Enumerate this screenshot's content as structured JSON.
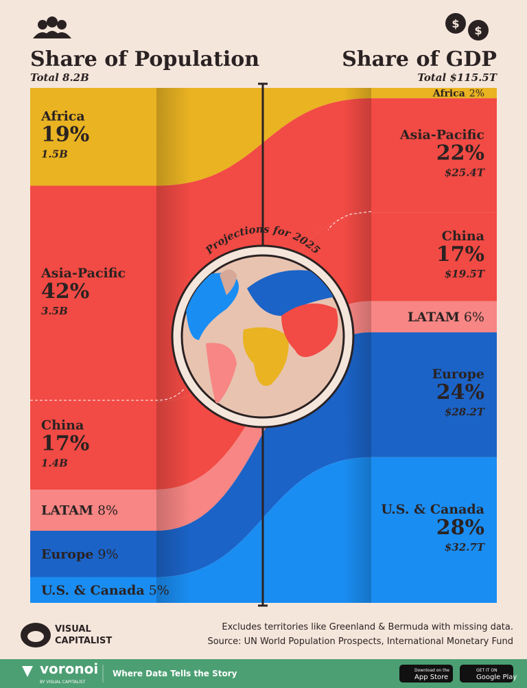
{
  "chart_data": {
    "type": "alluvial",
    "annotation": "Projections for 2025",
    "categories": [
      "Africa",
      "Asia-Pacific",
      "China",
      "LATAM",
      "Europe",
      "U.S. & Canada"
    ],
    "colors": [
      "#e9b322",
      "#f24a44",
      "#f24a44",
      "#f78684",
      "#1b63c7",
      "#1a8df2"
    ],
    "series": [
      {
        "name": "Share of Population",
        "total_label": "Total 8.2B",
        "values": [
          19,
          42,
          17,
          8,
          9,
          5
        ],
        "value_labels": [
          "19%",
          "42%",
          "17%",
          "8%",
          "9%",
          "5%"
        ],
        "amount_labels": [
          "1.5B",
          "3.5B",
          "1.4B",
          null,
          null,
          null
        ]
      },
      {
        "name": "Share of GDP",
        "total_label": "Total $115.5T",
        "values": [
          2,
          22,
          17,
          6,
          24,
          28
        ],
        "value_labels": [
          "2%",
          "22%",
          "17%",
          "6%",
          "24%",
          "28%"
        ],
        "amount_labels": [
          null,
          "$25.4T",
          "$19.5T",
          null,
          "$28.2T",
          "$32.7T"
        ]
      }
    ]
  },
  "footer": {
    "note": "Excludes territories like Greenland & Bermuda with missing data.",
    "source": "Source: UN World Population Prospects, International Monetary Fund",
    "logo_top": "VISUAL",
    "logo_bottom": "CAPITALIST"
  },
  "banner": {
    "brand": "voronoi",
    "brand_sub": "BY VISUAL CAPITALIST",
    "tagline": "Where Data Tells the Story",
    "app_store_top": "Download on the",
    "app_store": "App Store",
    "play_top": "GET IT ON",
    "play": "Google Play"
  }
}
